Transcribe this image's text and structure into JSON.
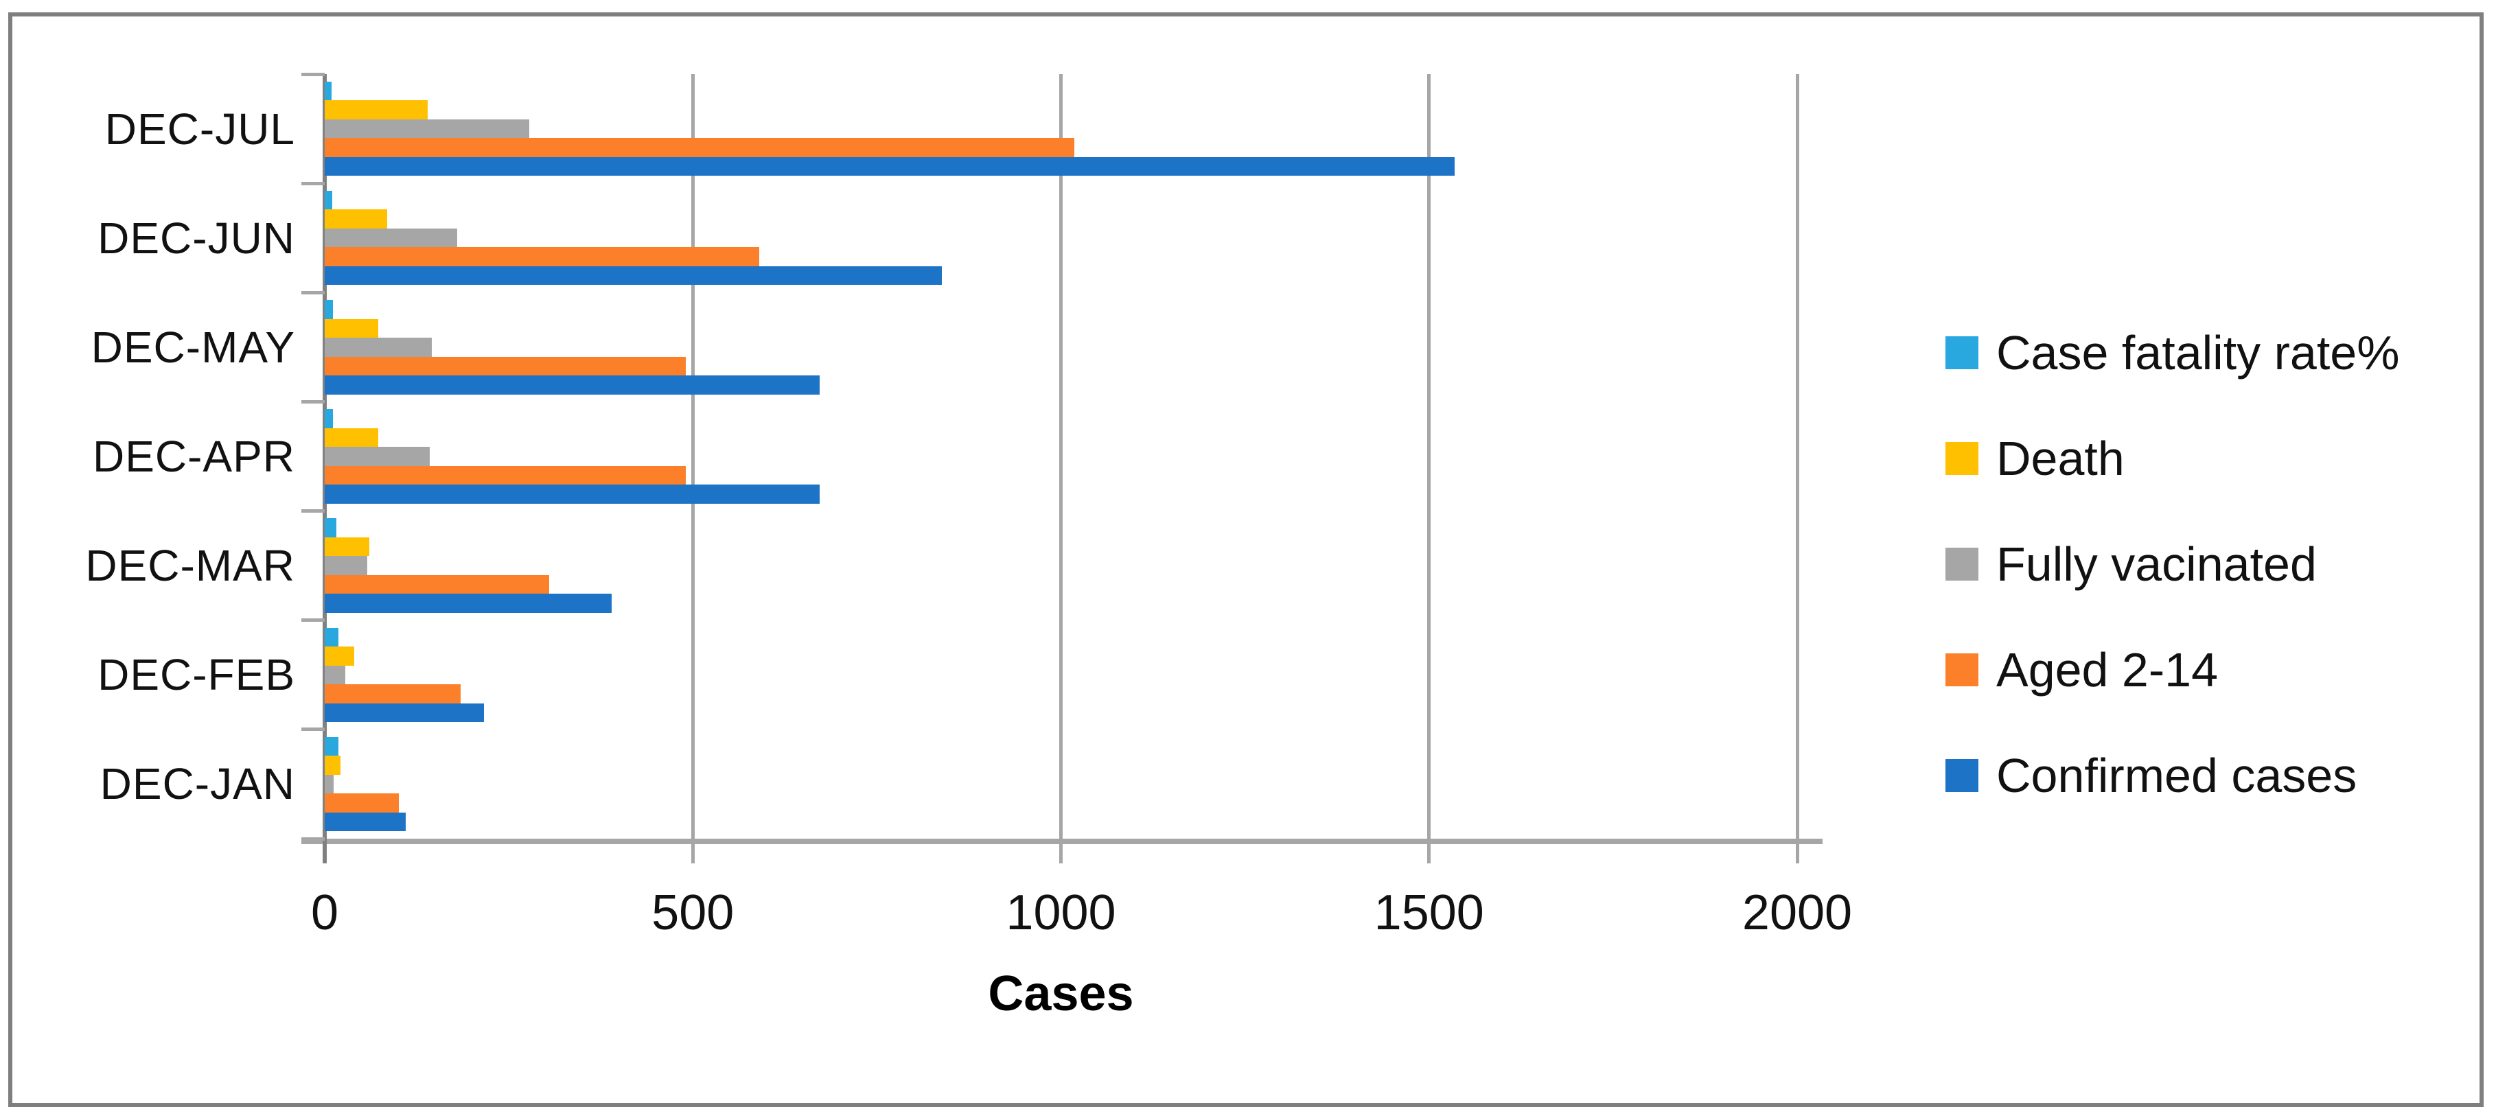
{
  "chart_data": {
    "type": "bar",
    "orientation": "horizontal",
    "title": "",
    "xlabel": "Cases",
    "ylabel": "",
    "categories": [
      "DEC-JUL",
      "DEC-JUN",
      "DEC-MAY",
      "DEC-APR",
      "DEC-MAR",
      "DEC-FEB",
      "DEC-JAN"
    ],
    "series": [
      {
        "name": "Case fatality rate%",
        "color": "#29A8E0",
        "values": [
          9.1,
          10.1,
          10.9,
          10.9,
          15.6,
          18.5,
          19.1
        ]
      },
      {
        "name": "Death",
        "color": "#FFC000",
        "values": [
          140,
          85,
          73,
          73,
          61,
          40,
          21
        ]
      },
      {
        "name": "Fully vacinated",
        "color": "#A6A6A6",
        "values": [
          278,
          180,
          145,
          143,
          58,
          28,
          12
        ]
      },
      {
        "name": "Aged 2-14",
        "color": "#FB8029",
        "values": [
          1018,
          590,
          490,
          490,
          305,
          185,
          101
        ]
      },
      {
        "name": "Confirmed cases",
        "color": "#1D73C6",
        "values": [
          1535,
          838,
          672,
          672,
          390,
          216,
          110
        ]
      }
    ],
    "x_ticks": [
      0,
      500,
      1000,
      1500,
      2000
    ],
    "xlim": [
      0,
      2000
    ],
    "legend_position": "right",
    "gridlines": "vertical",
    "style": {
      "gridline_color": "#A6A6A6",
      "zero_axis_color": "#808080",
      "axis_line_color": "#A6A6A6",
      "border_color": "#7F7F7F",
      "text_color": "#111111",
      "background": "#FFFFFF"
    }
  }
}
